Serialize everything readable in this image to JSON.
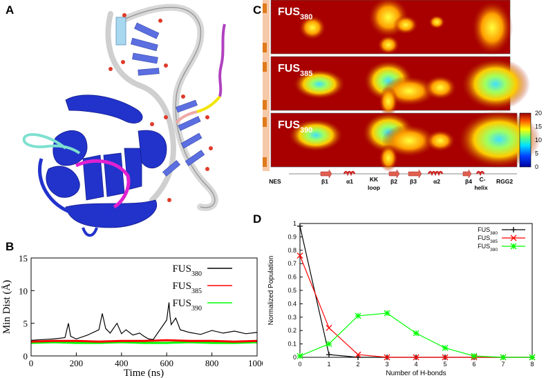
{
  "panels": {
    "A": {
      "letter": "A"
    },
    "B": {
      "letter": "B"
    },
    "C": {
      "letter": "C"
    },
    "D": {
      "letter": "D"
    }
  },
  "panel_B": {
    "chart_data": {
      "type": "line",
      "xlabel": "Time (ns)",
      "ylabel": "Min Dist (Å)",
      "xlim": [
        0,
        1000
      ],
      "ylim": [
        0,
        15
      ],
      "x_ticks": [
        "0",
        "200",
        "400",
        "600",
        "800",
        "1000"
      ],
      "y_ticks": [
        "0",
        "5",
        "10",
        "15"
      ],
      "legend": [
        {
          "base": "FUS",
          "sub": "380",
          "color": "#000000"
        },
        {
          "base": "FUS",
          "sub": "385",
          "color": "#ff0000"
        },
        {
          "base": "FUS",
          "sub": "390",
          "color": "#00ff00"
        }
      ],
      "series": [
        {
          "name": "FUS380",
          "color": "#000000",
          "x": [
            0,
            50,
            100,
            150,
            165,
            175,
            200,
            250,
            300,
            315,
            330,
            350,
            380,
            400,
            420,
            450,
            480,
            500,
            520,
            540,
            560,
            580,
            600,
            610,
            615,
            620,
            640,
            660,
            680,
            700,
            750,
            800,
            850,
            900,
            950,
            1000
          ],
          "y": [
            2.4,
            2.5,
            2.6,
            2.8,
            5.0,
            3.0,
            2.6,
            3.2,
            4.0,
            6.5,
            4.2,
            3.5,
            5.0,
            3.4,
            4.0,
            3.2,
            3.5,
            3.0,
            2.6,
            2.5,
            3.5,
            4.5,
            5.5,
            8.2,
            6.0,
            4.8,
            5.8,
            4.0,
            3.8,
            3.6,
            3.3,
            3.9,
            3.5,
            3.8,
            3.4,
            3.6
          ]
        },
        {
          "name": "FUS385",
          "color": "#ff0000",
          "x": [
            0,
            100,
            200,
            300,
            400,
            500,
            600,
            700,
            800,
            900,
            1000
          ],
          "y": [
            2.2,
            2.3,
            2.3,
            2.2,
            2.3,
            2.3,
            2.4,
            2.3,
            2.3,
            2.2,
            2.3
          ]
        },
        {
          "name": "FUS390",
          "color": "#00ff00",
          "x": [
            0,
            100,
            200,
            300,
            400,
            500,
            600,
            700,
            800,
            900,
            1000
          ],
          "y": [
            2.0,
            2.1,
            2.0,
            2.0,
            2.1,
            2.0,
            2.0,
            2.1,
            2.0,
            2.0,
            2.1
          ]
        }
      ]
    }
  },
  "panel_C": {
    "rows": [
      {
        "base": "FUS",
        "sub": "380"
      },
      {
        "base": "FUS",
        "sub": "385"
      },
      {
        "base": "FUS",
        "sub": "390"
      }
    ],
    "colorbar_ticks": [
      "20",
      "15",
      "10",
      "5",
      "0"
    ],
    "domain_labels": [
      {
        "text": "NES"
      },
      {
        "text": "β1"
      },
      {
        "text": "α1"
      },
      {
        "text": "KK"
      },
      {
        "text": "loop"
      },
      {
        "text": "β2"
      },
      {
        "text": "β3"
      },
      {
        "text": "α2"
      },
      {
        "text": "β4"
      },
      {
        "text": "C-"
      },
      {
        "text": "helix"
      },
      {
        "text": "RGG2"
      }
    ]
  },
  "panel_D": {
    "chart_data": {
      "type": "line",
      "xlabel": "Number of H-bonds",
      "ylabel": "Normalized Population",
      "xlim": [
        0,
        8
      ],
      "ylim": [
        0,
        1
      ],
      "x_ticks": [
        "0",
        "1",
        "2",
        "3",
        "4",
        "5",
        "6",
        "7",
        "8"
      ],
      "y_ticks": [
        "0",
        "0.1",
        "0.2",
        "0.3",
        "0.4",
        "0.5",
        "0.6",
        "0.7",
        "0.8",
        "0.9",
        "1"
      ],
      "legend": [
        {
          "base": "FUS",
          "sub": "380",
          "color": "#000000"
        },
        {
          "base": "FUS",
          "sub": "385",
          "color": "#ff0000"
        },
        {
          "base": "FUS",
          "sub": "390",
          "color": "#00ff00"
        }
      ],
      "x": [
        0,
        1,
        2,
        3,
        4,
        5,
        6,
        7,
        8
      ],
      "series": [
        {
          "name": "FUS380",
          "color": "#000000",
          "marker": "+",
          "values": [
            0.98,
            0.02,
            0,
            0,
            0,
            0,
            0,
            0,
            0
          ]
        },
        {
          "name": "FUS385",
          "color": "#ff0000",
          "marker": "x",
          "values": [
            0.76,
            0.22,
            0.02,
            0,
            0,
            0,
            0,
            0,
            0
          ]
        },
        {
          "name": "FUS390",
          "color": "#00ff00",
          "marker": "*",
          "values": [
            0.01,
            0.1,
            0.31,
            0.33,
            0.18,
            0.07,
            0.01,
            0,
            0
          ]
        }
      ]
    }
  }
}
